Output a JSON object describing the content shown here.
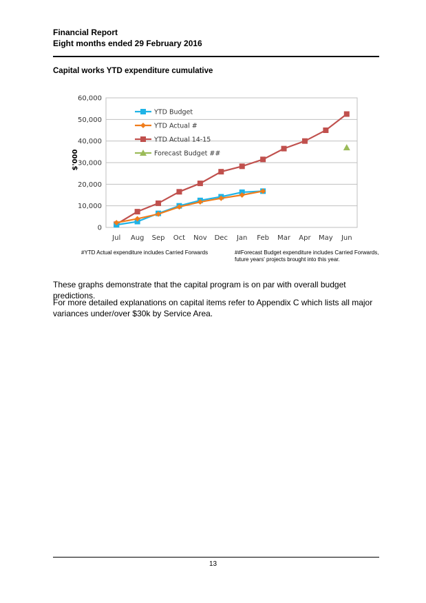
{
  "header": {
    "line1": "Financial Report",
    "line2": "Eight months ended 29 February 2016"
  },
  "section_title": "Capital works YTD expenditure cumulative",
  "chart_data": {
    "type": "line",
    "title": "",
    "xlabel": "",
    "ylabel": "$'000",
    "ylim": [
      0,
      60000
    ],
    "yticks": [
      0,
      10000,
      20000,
      30000,
      40000,
      50000,
      60000
    ],
    "ytick_labels": [
      "0",
      "10,000",
      "20,000",
      "30,000",
      "40,000",
      "50,000",
      "60,000"
    ],
    "categories": [
      "Jul",
      "Aug",
      "Sep",
      "Oct",
      "Nov",
      "Dec",
      "Jan",
      "Feb",
      "Mar",
      "Apr",
      "May",
      "Jun"
    ],
    "legend_position": "top-left",
    "grid": true,
    "series": [
      {
        "name": "YTD  Budget",
        "color": "#1FB3E6",
        "marker": "square",
        "line": true,
        "values": [
          1200,
          2700,
          6500,
          10000,
          12500,
          14200,
          16300,
          16800,
          null,
          null,
          null,
          null
        ]
      },
      {
        "name": "YTD  Actual #",
        "color": "#F07D1C",
        "marker": "diamond",
        "line": true,
        "values": [
          2200,
          4000,
          6200,
          9500,
          11800,
          13500,
          15000,
          16800,
          null,
          null,
          null,
          null
        ]
      },
      {
        "name": "YTD  Actual 14-15",
        "color": "#C0504D",
        "marker": "square",
        "line": true,
        "values": [
          1500,
          7300,
          11200,
          16500,
          20400,
          25800,
          28300,
          31500,
          36500,
          40000,
          45000,
          52500
        ]
      },
      {
        "name": "Forecast Budget  ##",
        "color": "#9BBB59",
        "marker": "triangle",
        "line": false,
        "values": [
          null,
          null,
          null,
          null,
          null,
          null,
          null,
          null,
          null,
          null,
          null,
          37000
        ]
      }
    ]
  },
  "notes": {
    "left": "#YTD Actual expenditure includes Carried Forwards",
    "right": "##Forecast Budget expenditure includes Carried Forwards, future years' projects brought into this year."
  },
  "body": {
    "para1": "These graphs demonstrate that the capital program is on par with overall budget predictions.",
    "para2": "For more detailed explanations on capital items refer to Appendix C which lists all major variances under/over $30k by Service Area."
  },
  "footer": {
    "page_number": "13"
  }
}
